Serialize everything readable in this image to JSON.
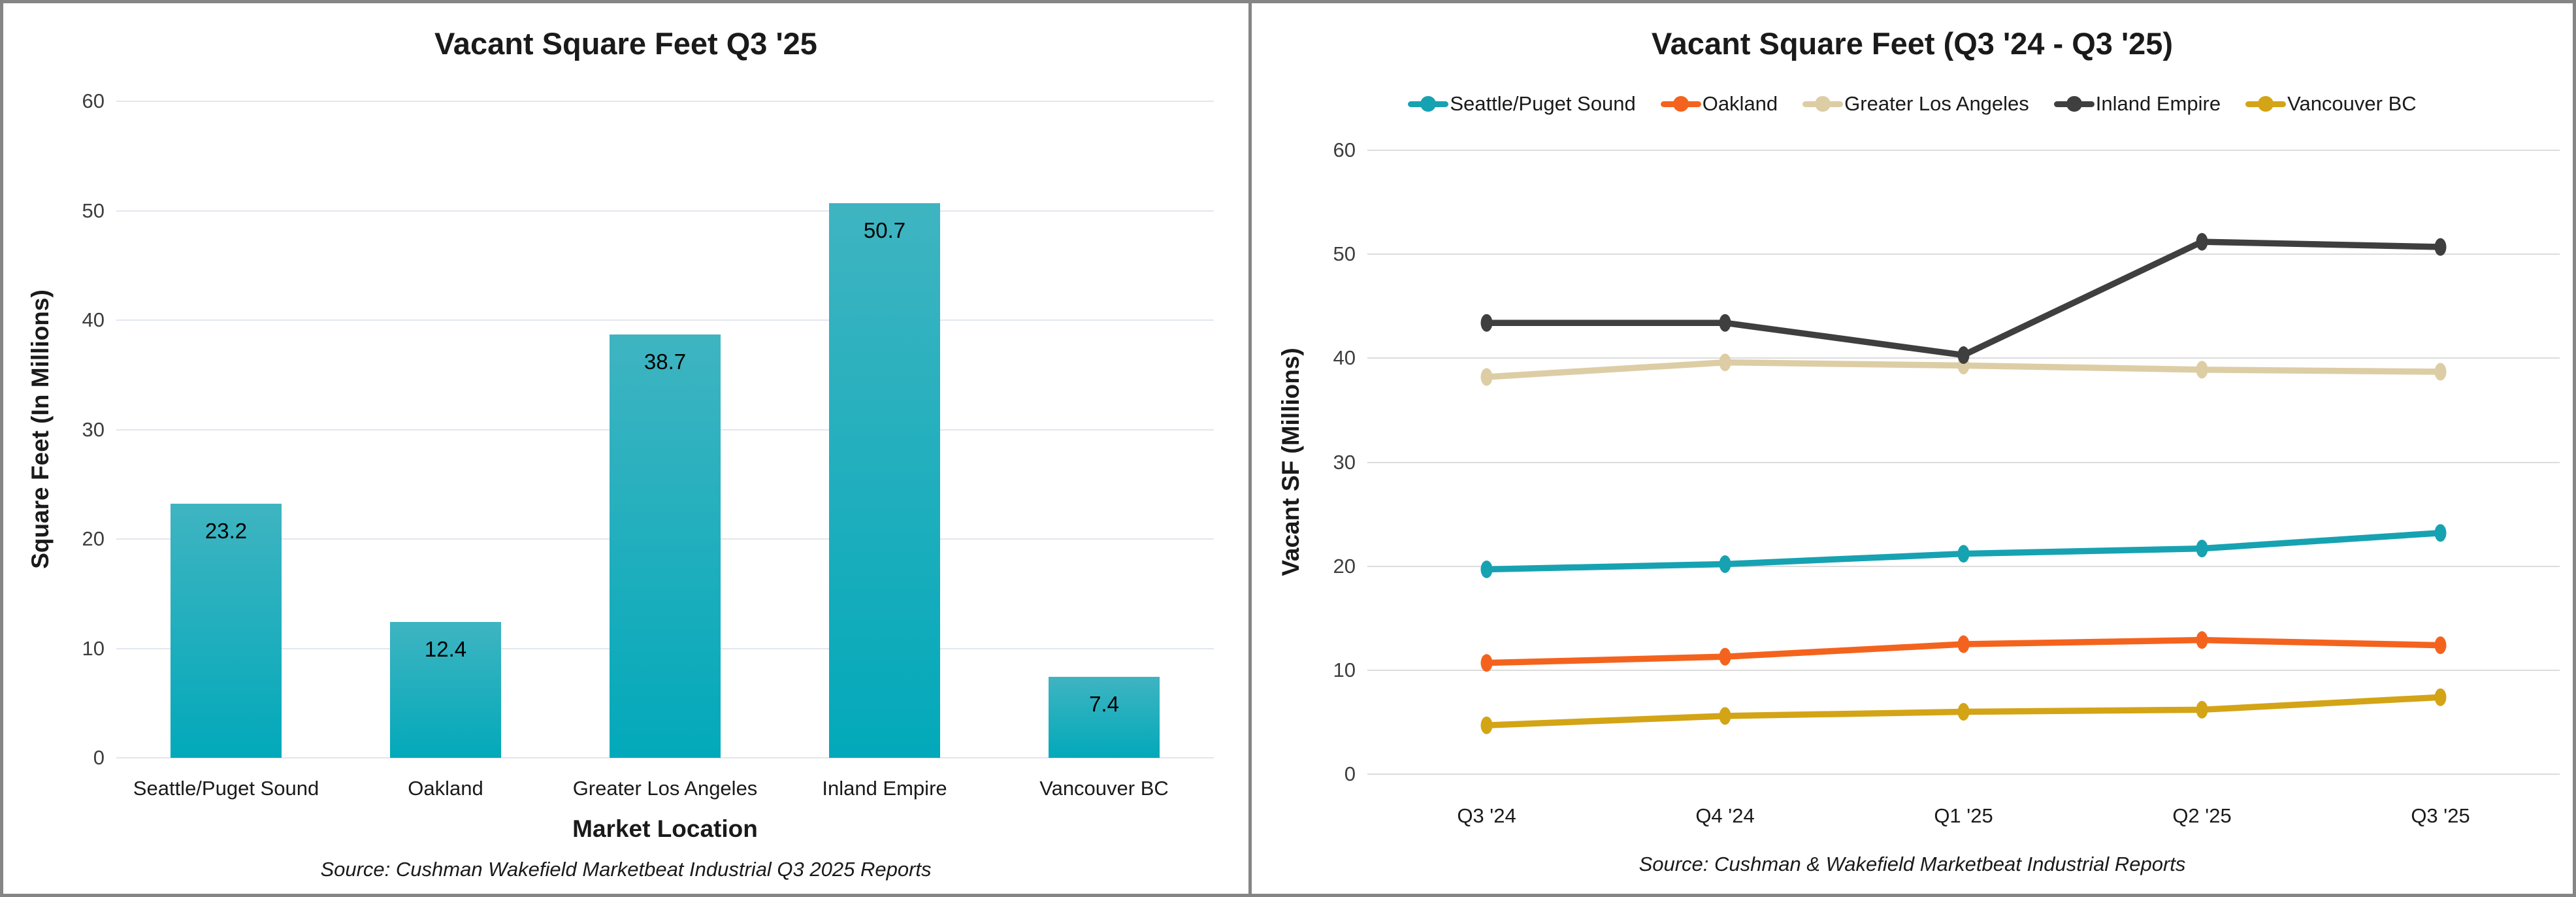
{
  "frame": {
    "border_color": "#858585"
  },
  "chart_data": [
    {
      "type": "bar",
      "title": "Vacant Square Feet Q3 '25",
      "xlabel": "Market Location",
      "ylabel": "Square Feet (In Millions)",
      "source": "Source: Cushman Wakefield Marketbeat Industrial Q3 2025 Reports",
      "categories": [
        "Seattle/Puget Sound",
        "Oakland",
        "Greater Los Angeles",
        "Inland Empire",
        "Vancouver BC"
      ],
      "values": [
        23.2,
        12.4,
        38.7,
        50.7,
        7.4
      ],
      "data_labels": [
        "23.2",
        "12.4",
        "38.7",
        "50.7",
        "7.4"
      ],
      "ylim": [
        0,
        60
      ],
      "yticks": [
        0,
        10,
        20,
        30,
        40,
        50,
        60
      ],
      "grid": true,
      "bar_color_top": "#3fb4c1",
      "bar_color_bottom": "#02a9ba"
    },
    {
      "type": "line",
      "title": "Vacant Square Feet (Q3 '24 - Q3 '25)",
      "xlabel": "",
      "ylabel": "Vacant SF (Millions)",
      "source": "Source: Cushman & Wakefield Marketbeat Industrial Reports",
      "categories": [
        "Q3 '24",
        "Q4 '24",
        "Q1 '25",
        "Q2 '25",
        "Q3 '25"
      ],
      "ylim": [
        0,
        60
      ],
      "yticks": [
        0,
        10,
        20,
        30,
        40,
        50,
        60
      ],
      "grid": true,
      "legend_position": "top",
      "series": [
        {
          "name": "Seattle/Puget Sound",
          "color": "#17a2b2",
          "values": [
            19.7,
            20.2,
            21.2,
            21.7,
            23.2
          ]
        },
        {
          "name": "Oakland",
          "color": "#f4631e",
          "values": [
            10.7,
            11.3,
            12.5,
            12.9,
            12.4
          ]
        },
        {
          "name": "Greater Los Angeles",
          "color": "#ddcda5",
          "values": [
            38.2,
            39.6,
            39.3,
            38.9,
            38.7
          ]
        },
        {
          "name": "Inland Empire",
          "color": "#3f3f3f",
          "values": [
            43.4,
            43.4,
            40.3,
            51.2,
            50.7
          ]
        },
        {
          "name": "Vancouver BC",
          "color": "#d3a416",
          "values": [
            4.7,
            5.6,
            6.0,
            6.2,
            7.4
          ]
        }
      ]
    }
  ]
}
